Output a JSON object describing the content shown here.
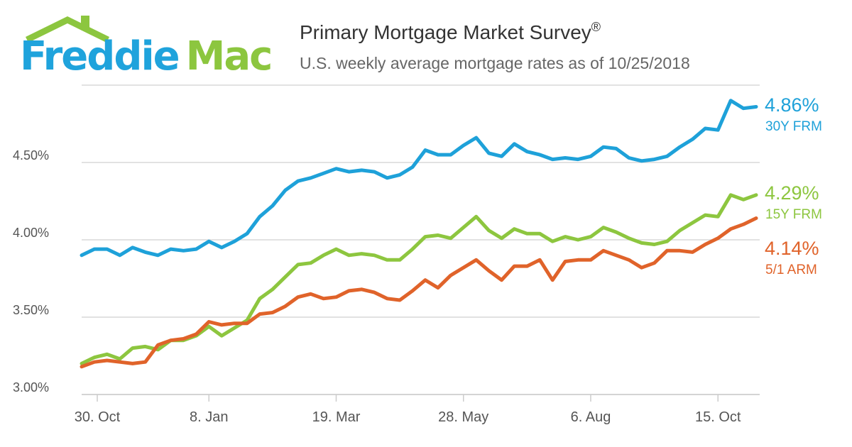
{
  "logo": {
    "text_left": "Freddie",
    "text_right": "Mac",
    "house_color": "#8cc63f",
    "text_color": "#1fa3dc"
  },
  "header": {
    "title": "Primary Mortgage Market Survey",
    "title_mark": "®",
    "subtitle": "U.S. weekly average mortgage rates as of 10/25/2018"
  },
  "colors": {
    "frm30": "#1ea1d9",
    "frm15": "#8dc63f",
    "arm51": "#e0632a",
    "grid": "#d9d9d9",
    "axis_text": "#555555"
  },
  "endpoints": [
    {
      "value": "4.86%",
      "label": "30Y FRM",
      "color": "#1ea1d9"
    },
    {
      "value": "4.29%",
      "label": "15Y FRM",
      "color": "#8dc63f"
    },
    {
      "value": "4.14%",
      "label": "5/1 ARM",
      "color": "#e0632a"
    }
  ],
  "chart_data": {
    "type": "line",
    "title": "Primary Mortgage Market Survey",
    "subtitle": "U.S. weekly average mortgage rates as of 10/25/2018",
    "xlabel": "",
    "ylabel": "",
    "x_tick_labels": [
      "30. Oct",
      "8. Jan",
      "19. Mar",
      "28. May",
      "6. Aug",
      "15. Oct"
    ],
    "x_tick_week_index": [
      0,
      10,
      20,
      30,
      40,
      50
    ],
    "y_tick_labels": [
      "3.00%",
      "3.50%",
      "4.00%",
      "4.50%"
    ],
    "y_ticks": [
      3.0,
      3.5,
      4.0,
      4.5
    ],
    "ylim": [
      3.0,
      5.0
    ],
    "x_range_weeks": [
      0,
      53
    ],
    "grid": "horizontal",
    "legend": "right-end labels",
    "series": [
      {
        "name": "30Y FRM",
        "color": "#1ea1d9",
        "values": [
          3.9,
          3.94,
          3.94,
          3.9,
          3.95,
          3.92,
          3.9,
          3.94,
          3.93,
          3.94,
          3.99,
          3.95,
          3.99,
          4.04,
          4.15,
          4.22,
          4.32,
          4.38,
          4.4,
          4.43,
          4.46,
          4.44,
          4.45,
          4.44,
          4.4,
          4.42,
          4.47,
          4.58,
          4.55,
          4.55,
          4.61,
          4.66,
          4.56,
          4.54,
          4.62,
          4.57,
          4.55,
          4.52,
          4.53,
          4.52,
          4.54,
          4.6,
          4.59,
          4.53,
          4.51,
          4.52,
          4.54,
          4.6,
          4.65,
          4.72,
          4.71,
          4.9,
          4.85,
          4.86
        ]
      },
      {
        "name": "15Y FRM",
        "color": "#8dc63f",
        "values": [
          3.2,
          3.24,
          3.26,
          3.23,
          3.3,
          3.31,
          3.29,
          3.35,
          3.35,
          3.38,
          3.44,
          3.38,
          3.43,
          3.48,
          3.62,
          3.68,
          3.76,
          3.84,
          3.85,
          3.9,
          3.94,
          3.9,
          3.91,
          3.9,
          3.87,
          3.87,
          3.94,
          4.02,
          4.03,
          4.01,
          4.08,
          4.15,
          4.06,
          4.01,
          4.07,
          4.04,
          4.04,
          3.99,
          4.02,
          4.0,
          4.02,
          4.08,
          4.05,
          4.01,
          3.98,
          3.97,
          3.99,
          4.06,
          4.11,
          4.16,
          4.15,
          4.29,
          4.26,
          4.29
        ]
      },
      {
        "name": "5/1 ARM",
        "color": "#e0632a",
        "values": [
          3.18,
          3.21,
          3.22,
          3.21,
          3.2,
          3.21,
          3.32,
          3.35,
          3.36,
          3.39,
          3.47,
          3.45,
          3.46,
          3.46,
          3.52,
          3.53,
          3.57,
          3.63,
          3.65,
          3.62,
          3.63,
          3.67,
          3.68,
          3.66,
          3.62,
          3.61,
          3.67,
          3.74,
          3.69,
          3.77,
          3.82,
          3.87,
          3.8,
          3.74,
          3.83,
          3.83,
          3.87,
          3.74,
          3.86,
          3.87,
          3.87,
          3.93,
          3.9,
          3.87,
          3.82,
          3.85,
          3.93,
          3.93,
          3.92,
          3.97,
          4.01,
          4.07,
          4.1,
          4.14
        ]
      }
    ]
  }
}
